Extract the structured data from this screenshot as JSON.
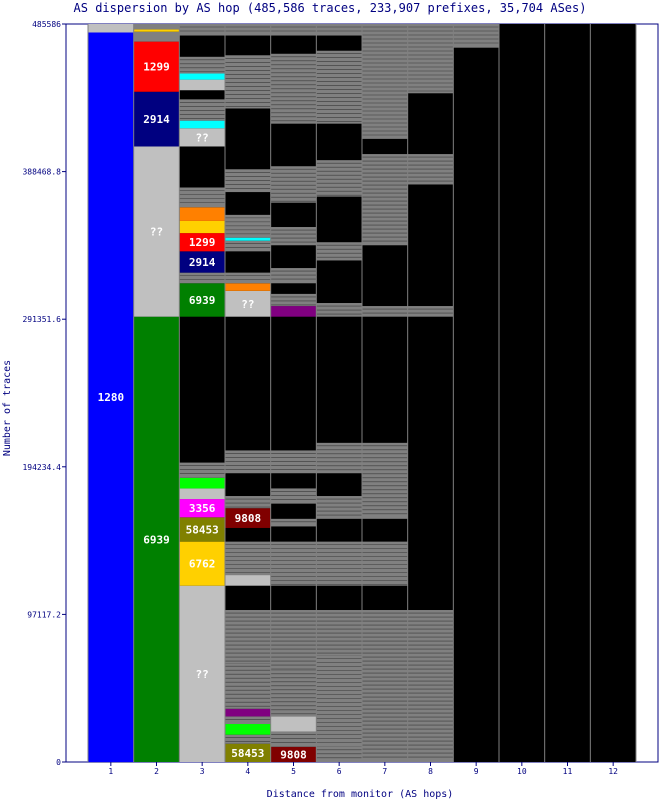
{
  "chart_data": {
    "type": "bar",
    "title": "AS dispersion by AS hop (485,586 traces, 233,907 prefixes, 35,704 ASes)",
    "xlabel": "Distance from monitor (AS hops)",
    "ylabel": "Number of traces",
    "ylim": [
      0,
      485586
    ],
    "y_ticks": [
      "0",
      "97117.2",
      "194234.4",
      "291351.6",
      "388468.8",
      "485586"
    ],
    "categories": [
      "1",
      "2",
      "3",
      "4",
      "5",
      "6",
      "7",
      "8",
      "9",
      "10",
      "11",
      "12"
    ],
    "colors": {
      "1280": "#0000ff",
      "6939": "#008000",
      "1299": "#ff0000",
      "2914": "#000080",
      "??": "#c0c0c0",
      "3356": "#ff00ff",
      "58453": "#808000",
      "9808": "#800000",
      "6762": "#ffd000",
      "other": "#808080",
      "none": "#000000",
      "orange": "#ff8000",
      "cyan": "#00ffff",
      "lime": "#00ff00",
      "purple": "#800080"
    },
    "columns": [
      {
        "hop": 1,
        "segments": [
          {
            "as": "1280",
            "from": 0,
            "to": 480000,
            "label": "1280",
            "color": "1280"
          },
          {
            "as": "other",
            "from": 480000,
            "to": 485586,
            "color": "??"
          }
        ]
      },
      {
        "hop": 2,
        "segments": [
          {
            "as": "6939",
            "from": 0,
            "to": 293000,
            "label": "6939",
            "color": "6939"
          },
          {
            "as": "??",
            "from": 293000,
            "to": 405000,
            "label": "??",
            "color": "??"
          },
          {
            "as": "2914",
            "from": 405000,
            "to": 441000,
            "label": "2914",
            "color": "2914"
          },
          {
            "as": "1299",
            "from": 441000,
            "to": 474000,
            "label": "1299",
            "color": "1299"
          },
          {
            "as": "other",
            "from": 474000,
            "to": 480500,
            "color": "other"
          },
          {
            "as": "other",
            "from": 480500,
            "to": 482000,
            "color": "6762"
          },
          {
            "as": "other",
            "from": 482000,
            "to": 485586,
            "color": "other"
          }
        ]
      },
      {
        "hop": 3,
        "segments": [
          {
            "as": "??",
            "from": 0,
            "to": 116000,
            "label": "??",
            "color": "??"
          },
          {
            "as": "6762",
            "from": 116000,
            "to": 145000,
            "label": "6762",
            "color": "6762"
          },
          {
            "as": "58453",
            "from": 145000,
            "to": 161000,
            "label": "58453",
            "color": "58453"
          },
          {
            "as": "3356",
            "from": 161000,
            "to": 173000,
            "label": "3356",
            "color": "3356"
          },
          {
            "as": "other",
            "from": 173000,
            "to": 180000,
            "color": "??"
          },
          {
            "as": "other",
            "from": 180000,
            "to": 187000,
            "color": "lime"
          },
          {
            "as": "other",
            "from": 187000,
            "to": 197000,
            "color": "other"
          },
          {
            "as": "6939",
            "from": 293000,
            "to": 315000,
            "label": "6939",
            "color": "6939"
          },
          {
            "as": "other",
            "from": 315000,
            "to": 322000,
            "color": "other"
          },
          {
            "as": "2914",
            "from": 322000,
            "to": 336000,
            "label": "2914",
            "color": "2914"
          },
          {
            "as": "1299",
            "from": 336000,
            "to": 348000,
            "label": "1299",
            "color": "1299"
          },
          {
            "as": "other",
            "from": 348000,
            "to": 356000,
            "color": "6762"
          },
          {
            "as": "other",
            "from": 356000,
            "to": 365000,
            "color": "orange"
          },
          {
            "as": "other",
            "from": 365000,
            "to": 378000,
            "color": "other"
          },
          {
            "as": "??",
            "from": 405000,
            "to": 417000,
            "label": "??",
            "color": "??"
          },
          {
            "as": "other",
            "from": 417000,
            "to": 422000,
            "color": "cyan"
          },
          {
            "as": "other",
            "from": 422000,
            "to": 436000,
            "color": "other"
          },
          {
            "as": "other",
            "from": 442000,
            "to": 449000,
            "color": "??"
          },
          {
            "as": "other",
            "from": 449000,
            "to": 453000,
            "color": "cyan"
          },
          {
            "as": "other",
            "from": 453000,
            "to": 464000,
            "color": "other"
          },
          {
            "as": "other",
            "from": 478000,
            "to": 485586,
            "color": "other"
          }
        ]
      },
      {
        "hop": 4,
        "segments": [
          {
            "as": "58453",
            "from": 0,
            "to": 12000,
            "label": "58453",
            "color": "58453"
          },
          {
            "as": "other",
            "from": 12000,
            "to": 18000,
            "color": "other"
          },
          {
            "as": "other",
            "from": 18000,
            "to": 25000,
            "color": "lime"
          },
          {
            "as": "other",
            "from": 25000,
            "to": 30000,
            "color": "other"
          },
          {
            "as": "other",
            "from": 30000,
            "to": 35000,
            "color": "purple"
          },
          {
            "as": "other",
            "from": 35000,
            "to": 65000,
            "color": "other"
          },
          {
            "as": "other",
            "from": 65000,
            "to": 100000,
            "color": "other"
          },
          {
            "as": "other",
            "from": 116000,
            "to": 123000,
            "color": "??"
          },
          {
            "as": "other",
            "from": 123000,
            "to": 145000,
            "color": "other"
          },
          {
            "as": "9808",
            "from": 154000,
            "to": 167000,
            "label": "9808",
            "color": "9808"
          },
          {
            "as": "other",
            "from": 167000,
            "to": 175000,
            "color": "other"
          },
          {
            "as": "other",
            "from": 190000,
            "to": 205000,
            "color": "other"
          },
          {
            "as": "??",
            "from": 293000,
            "to": 310000,
            "label": "??",
            "color": "??"
          },
          {
            "as": "other",
            "from": 310000,
            "to": 315000,
            "color": "orange"
          },
          {
            "as": "other",
            "from": 315000,
            "to": 322000,
            "color": "other"
          },
          {
            "as": "other",
            "from": 336000,
            "to": 343000,
            "color": "other"
          },
          {
            "as": "other",
            "from": 343000,
            "to": 345000,
            "color": "cyan"
          },
          {
            "as": "other",
            "from": 345000,
            "to": 360000,
            "color": "other"
          },
          {
            "as": "other",
            "from": 375000,
            "to": 390000,
            "color": "other"
          },
          {
            "as": "other",
            "from": 430000,
            "to": 465000,
            "color": "other"
          },
          {
            "as": "other",
            "from": 478000,
            "to": 485586,
            "color": "other"
          }
        ]
      },
      {
        "hop": 5,
        "segments": [
          {
            "as": "9808",
            "from": 0,
            "to": 10000,
            "label": "9808",
            "color": "9808"
          },
          {
            "as": "other",
            "from": 10000,
            "to": 20000,
            "color": "other"
          },
          {
            "as": "other",
            "from": 20000,
            "to": 30000,
            "color": "??"
          },
          {
            "as": "other",
            "from": 30000,
            "to": 60000,
            "color": "other"
          },
          {
            "as": "other",
            "from": 60000,
            "to": 100000,
            "color": "other"
          },
          {
            "as": "other",
            "from": 116000,
            "to": 145000,
            "color": "other"
          },
          {
            "as": "other",
            "from": 155000,
            "to": 160000,
            "color": "other"
          },
          {
            "as": "other",
            "from": 170000,
            "to": 180000,
            "color": "other"
          },
          {
            "as": "other",
            "from": 190000,
            "to": 205000,
            "color": "other"
          },
          {
            "as": "other",
            "from": 293000,
            "to": 300000,
            "color": "purple"
          },
          {
            "as": "other",
            "from": 300000,
            "to": 308000,
            "color": "other"
          },
          {
            "as": "other",
            "from": 315000,
            "to": 325000,
            "color": "other"
          },
          {
            "as": "other",
            "from": 340000,
            "to": 352000,
            "color": "other"
          },
          {
            "as": "other",
            "from": 368000,
            "to": 392000,
            "color": "other"
          },
          {
            "as": "other",
            "from": 420000,
            "to": 466000,
            "color": "other"
          },
          {
            "as": "other",
            "from": 478000,
            "to": 485586,
            "color": "other"
          }
        ]
      },
      {
        "hop": 6,
        "segments": [
          {
            "as": "other",
            "from": 0,
            "to": 10000,
            "color": "other"
          },
          {
            "as": "other",
            "from": 10000,
            "to": 70000,
            "color": "other"
          },
          {
            "as": "other",
            "from": 70000,
            "to": 100000,
            "color": "other"
          },
          {
            "as": "other",
            "from": 116000,
            "to": 145000,
            "color": "other"
          },
          {
            "as": "other",
            "from": 160000,
            "to": 175000,
            "color": "other"
          },
          {
            "as": "other",
            "from": 190000,
            "to": 210000,
            "color": "other"
          },
          {
            "as": "other",
            "from": 293000,
            "to": 302000,
            "color": "other"
          },
          {
            "as": "other",
            "from": 330000,
            "to": 342000,
            "color": "other"
          },
          {
            "as": "other",
            "from": 372000,
            "to": 396000,
            "color": "other"
          },
          {
            "as": "other",
            "from": 420000,
            "to": 468000,
            "color": "other"
          },
          {
            "as": "other",
            "from": 478000,
            "to": 485586,
            "color": "other"
          }
        ]
      },
      {
        "hop": 7,
        "segments": [
          {
            "as": "other",
            "from": 0,
            "to": 100000,
            "color": "other"
          },
          {
            "as": "other",
            "from": 116000,
            "to": 145000,
            "color": "other"
          },
          {
            "as": "other",
            "from": 160000,
            "to": 210000,
            "color": "other"
          },
          {
            "as": "other",
            "from": 293000,
            "to": 300000,
            "color": "other"
          },
          {
            "as": "other",
            "from": 340000,
            "to": 400000,
            "color": "other"
          },
          {
            "as": "other",
            "from": 410000,
            "to": 485586,
            "color": "other"
          }
        ]
      },
      {
        "hop": 8,
        "segments": [
          {
            "as": "other",
            "from": 0,
            "to": 100000,
            "color": "other"
          },
          {
            "as": "other",
            "from": 293000,
            "to": 300000,
            "color": "other"
          },
          {
            "as": "other",
            "from": 380000,
            "to": 400000,
            "color": "other"
          },
          {
            "as": "other",
            "from": 440000,
            "to": 485586,
            "color": "other"
          }
        ]
      },
      {
        "hop": 9,
        "segments": [
          {
            "as": "other",
            "from": 470000,
            "to": 485586,
            "color": "other"
          }
        ]
      },
      {
        "hop": 10,
        "segments": []
      },
      {
        "hop": 11,
        "segments": []
      },
      {
        "hop": 12,
        "segments": []
      }
    ]
  }
}
